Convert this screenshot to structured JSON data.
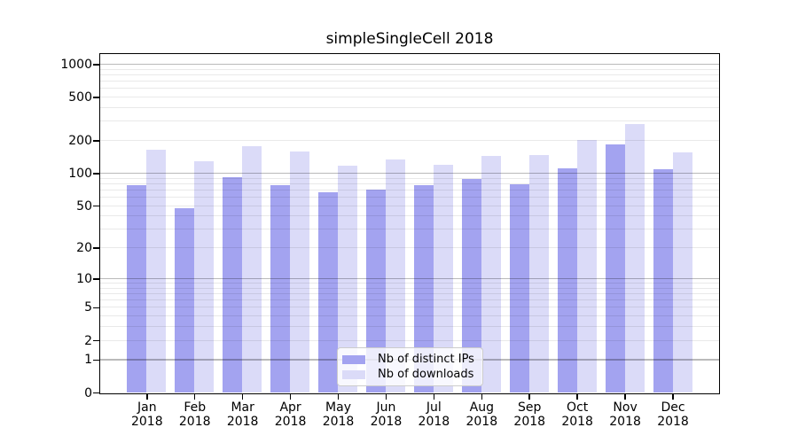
{
  "chart_data": {
    "type": "bar",
    "title": "simpleSingleCell 2018",
    "categories": [
      "Jan 2018",
      "Feb 2018",
      "Mar 2018",
      "Apr 2018",
      "May 2018",
      "Jun 2018",
      "Jul 2018",
      "Aug 2018",
      "Sep 2018",
      "Oct 2018",
      "Nov 2018",
      "Dec 2018"
    ],
    "series": [
      {
        "name": "Nb of distinct IPs",
        "color": "#a3a3f0",
        "values": [
          77,
          47,
          92,
          77,
          66,
          70,
          78,
          89,
          79,
          111,
          184,
          108
        ]
      },
      {
        "name": "Nb of downloads",
        "color": "#dbdbf8",
        "values": [
          165,
          130,
          177,
          159,
          117,
          134,
          120,
          145,
          147,
          201,
          285,
          155
        ]
      }
    ],
    "y_ticks": [
      0,
      1,
      2,
      5,
      10,
      20,
      50,
      100,
      200,
      500,
      1000
    ],
    "y_scale": "log10(1+value)",
    "ylim": [
      0,
      1240
    ],
    "xlabel": "",
    "ylabel": "",
    "grid": true,
    "legend": {
      "position": "lower-center",
      "entries": [
        "Nb of distinct IPs",
        "Nb of downloads"
      ]
    },
    "style": {
      "bar_color_distinct_ips": "#a3a3f0",
      "bar_color_downloads": "#dbdbf8",
      "major_grid_color": "#b9b9b9",
      "minor_grid_color": "#e8e8e8",
      "axis_color": "#000000",
      "text_color": "#000000",
      "legend_border_color": "#cccccc",
      "legend_background": "rgba(255,255,255,0.8)",
      "background": "#ffffff"
    }
  }
}
